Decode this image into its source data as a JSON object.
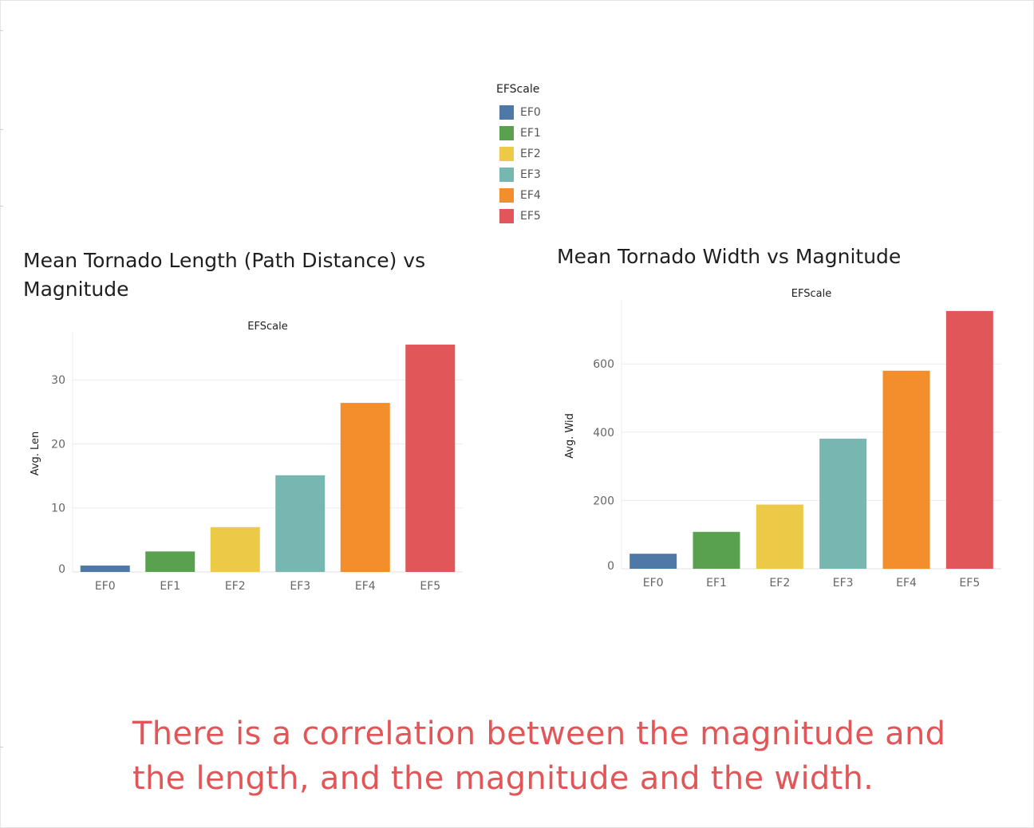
{
  "colors": {
    "EF0": "#4e79a7",
    "EF1": "#59a14f",
    "EF2": "#edc948",
    "EF3": "#76b7b2",
    "EF4": "#f28e2b",
    "EF5": "#e15759",
    "conclusion_text": "#e15759"
  },
  "legend": {
    "title": "EFScale",
    "items": [
      {
        "label": "EF0",
        "color": "#4e79a7"
      },
      {
        "label": "EF1",
        "color": "#59a14f"
      },
      {
        "label": "EF2",
        "color": "#edc948"
      },
      {
        "label": "EF3",
        "color": "#76b7b2"
      },
      {
        "label": "EF4",
        "color": "#f28e2b"
      },
      {
        "label": "EF5",
        "color": "#e15759"
      }
    ]
  },
  "chart_data": [
    {
      "type": "bar",
      "title": "Mean Tornado Length (Path Distance) vs Magnitude",
      "column_header": "EFScale",
      "xlabel": "",
      "ylabel": "Avg. Len",
      "categories": [
        "EF0",
        "EF1",
        "EF2",
        "EF3",
        "EF4",
        "EF5"
      ],
      "values": [
        1.0,
        3.2,
        7.0,
        15.1,
        26.4,
        35.5
      ],
      "yticks": [
        0,
        10,
        20,
        30
      ],
      "ylim": [
        0,
        37
      ],
      "grid": true,
      "legend": "top-center"
    },
    {
      "type": "bar",
      "title": "Mean Tornado Width vs Magnitude",
      "column_header": "EFScale",
      "xlabel": "",
      "ylabel": "Avg. Wid",
      "categories": [
        "EF0",
        "EF1",
        "EF2",
        "EF3",
        "EF4",
        "EF5"
      ],
      "values": [
        44,
        108,
        188,
        381,
        580,
        755
      ],
      "yticks": [
        0,
        200,
        400,
        600
      ],
      "ylim": [
        0,
        778
      ],
      "grid": true,
      "legend": "top-center"
    }
  ],
  "conclusion": "There is a correlation between the magnitude and the length, and the magnitude  and  the width."
}
